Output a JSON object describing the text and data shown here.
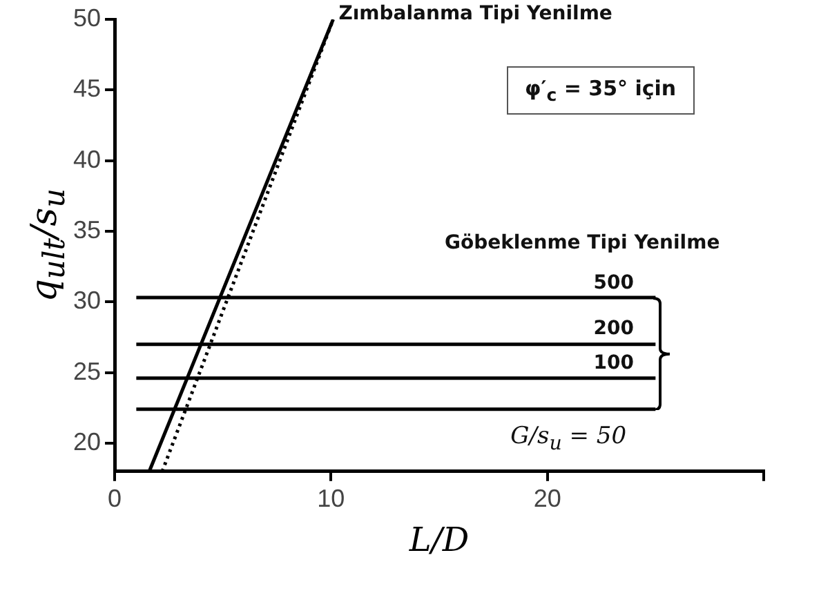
{
  "chart_data": {
    "type": "line",
    "xlabel": "L/D",
    "ylabel": "q$_{ult}$/s$_{u}$",
    "annotations": [
      {
        "text": "Zımbalanma Tipi Yenilme",
        "x": 10.1,
        "y": 50
      },
      "φ′$_{c}$ = 35° için",
      "Göbeklenme Tipi Yenilme",
      {
        "text": "500",
        "x": 24,
        "y": 30.3
      },
      {
        "text": "200",
        "x": 24,
        "y": 27.0
      },
      {
        "text": "100",
        "x": 24,
        "y": 24.6
      },
      {
        "text": "G/s$_{u}$ = 50",
        "x": 22,
        "y": 22.4
      }
    ],
    "series": [
      {
        "x": [
          1.6,
          10.1
        ],
        "values": [
          18,
          50
        ],
        "color": "#000000"
      },
      {
        "x": [
          2.2,
          10.1
        ],
        "values": [
          18,
          50
        ],
        "color": "#000000",
        "line_style": "dotted"
      },
      {
        "x": [
          1,
          25
        ],
        "values": [
          30.3,
          30.3
        ],
        "color": "#000000"
      },
      {
        "x": [
          1,
          25
        ],
        "values": [
          27.0,
          27.0
        ],
        "color": "#000000"
      },
      {
        "x": [
          1,
          25
        ],
        "values": [
          24.6,
          24.6
        ],
        "color": "#000000"
      },
      {
        "x": [
          1,
          25
        ],
        "values": [
          22.4,
          22.4
        ],
        "color": "#000000"
      }
    ],
    "xlim": [
      0,
      30
    ],
    "xticks": [
      0,
      10,
      20,
      {
        "value": 30,
        "label": null
      }
    ],
    "ylim": [
      18,
      50
    ],
    "yticks": [
      20,
      25,
      30,
      35,
      40,
      45,
      50
    ],
    "grid": false,
    "legend": false,
    "marker": "none",
    "line_style": "solid"
  }
}
